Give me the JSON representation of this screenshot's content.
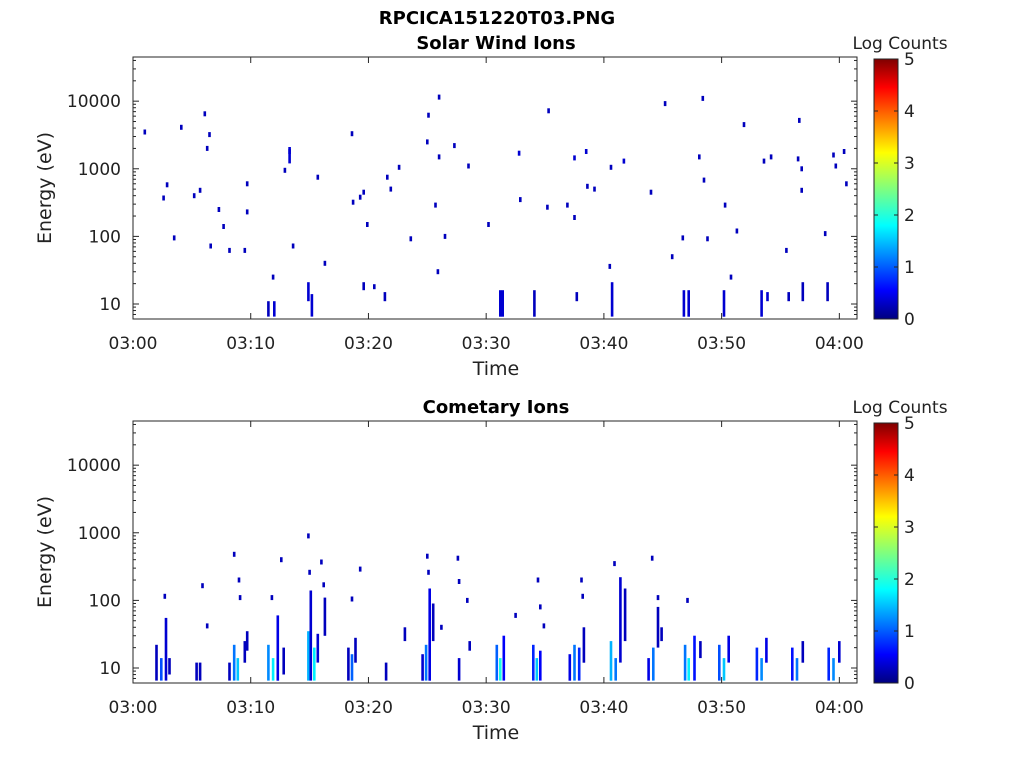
{
  "figure": {
    "main_title": "RPCICA151220T03.PNG"
  },
  "chart_data": [
    {
      "type": "heatmap",
      "title": "Solar Wind Ions",
      "xlabel": "Time",
      "ylabel": "Energy (eV)",
      "x_ticks": [
        "03:00",
        "03:10",
        "03:20",
        "03:30",
        "03:40",
        "03:50",
        "04:00"
      ],
      "y_scale": "log",
      "y_ticks": [
        "10",
        "100",
        "1000",
        "10000"
      ],
      "ylim": [
        6,
        45000
      ],
      "colorbar": {
        "label": "Log Counts",
        "ticks": [
          "0",
          "1",
          "2",
          "3",
          "4",
          "5"
        ],
        "range": [
          0,
          5
        ],
        "colormap": "jet"
      },
      "cells": [
        {
          "t": 1.0,
          "e": 3500,
          "v": 0.3
        },
        {
          "t": 2.6,
          "e": 370,
          "v": 0.3
        },
        {
          "t": 2.9,
          "e": 580,
          "v": 0.3
        },
        {
          "t": 3.5,
          "e": 95,
          "v": 0.3
        },
        {
          "t": 4.1,
          "e": 4100,
          "v": 0.3
        },
        {
          "t": 5.2,
          "e": 400,
          "v": 0.3
        },
        {
          "t": 5.7,
          "e": 480,
          "v": 0.3
        },
        {
          "t": 6.1,
          "e": 6500,
          "v": 0.3
        },
        {
          "t": 6.3,
          "e": 2000,
          "v": 0.3
        },
        {
          "t": 6.5,
          "e": 3200,
          "v": 0.3
        },
        {
          "t": 6.6,
          "e": 72,
          "v": 0.3
        },
        {
          "t": 7.3,
          "e": 250,
          "v": 0.3
        },
        {
          "t": 7.7,
          "e": 140,
          "v": 0.3
        },
        {
          "t": 8.2,
          "e": 62,
          "v": 0.3
        },
        {
          "t": 9.5,
          "e": 62,
          "v": 0.3
        },
        {
          "t": 9.7,
          "e": 600,
          "v": 0.3
        },
        {
          "t": 9.7,
          "e": 230,
          "v": 0.3
        },
        {
          "t": 11.9,
          "e": 25,
          "v": 0.3
        },
        {
          "t": 12.9,
          "e": 950,
          "v": 0.3
        },
        {
          "t": 13.3,
          "e": 1800,
          "v": 0.4
        },
        {
          "t": 13.6,
          "e": 72,
          "v": 0.3
        },
        {
          "t": 15.7,
          "e": 750,
          "v": 0.3
        },
        {
          "t": 16.3,
          "e": 40,
          "v": 0.3
        },
        {
          "t": 18.6,
          "e": 3300,
          "v": 0.3
        },
        {
          "t": 18.7,
          "e": 320,
          "v": 0.3
        },
        {
          "t": 19.3,
          "e": 380,
          "v": 0.3
        },
        {
          "t": 19.6,
          "e": 450,
          "v": 0.3
        },
        {
          "t": 19.9,
          "e": 150,
          "v": 0.3
        },
        {
          "t": 20.5,
          "e": 18,
          "v": 0.3
        },
        {
          "t": 21.6,
          "e": 750,
          "v": 0.3
        },
        {
          "t": 21.9,
          "e": 500,
          "v": 0.3
        },
        {
          "t": 22.6,
          "e": 1050,
          "v": 0.3
        },
        {
          "t": 23.6,
          "e": 92,
          "v": 0.3
        },
        {
          "t": 25.0,
          "e": 2500,
          "v": 0.3
        },
        {
          "t": 25.1,
          "e": 6200,
          "v": 0.3
        },
        {
          "t": 25.7,
          "e": 290,
          "v": 0.3
        },
        {
          "t": 25.9,
          "e": 30,
          "v": 0.3
        },
        {
          "t": 26.0,
          "e": 11500,
          "v": 0.3
        },
        {
          "t": 26.0,
          "e": 1500,
          "v": 0.3
        },
        {
          "t": 26.5,
          "e": 100,
          "v": 0.3
        },
        {
          "t": 27.3,
          "e": 2200,
          "v": 0.3
        },
        {
          "t": 28.5,
          "e": 1100,
          "v": 0.3
        },
        {
          "t": 30.2,
          "e": 150,
          "v": 0.3
        },
        {
          "t": 32.8,
          "e": 1700,
          "v": 0.4
        },
        {
          "t": 32.9,
          "e": 350,
          "v": 0.3
        },
        {
          "t": 35.2,
          "e": 270,
          "v": 0.3
        },
        {
          "t": 35.3,
          "e": 7200,
          "v": 0.3
        },
        {
          "t": 36.9,
          "e": 290,
          "v": 0.3
        },
        {
          "t": 37.5,
          "e": 190,
          "v": 0.3
        },
        {
          "t": 37.5,
          "e": 1450,
          "v": 0.4
        },
        {
          "t": 38.5,
          "e": 1800,
          "v": 0.4
        },
        {
          "t": 38.6,
          "e": 550,
          "v": 0.3
        },
        {
          "t": 39.2,
          "e": 500,
          "v": 0.3
        },
        {
          "t": 40.5,
          "e": 36,
          "v": 0.3
        },
        {
          "t": 40.6,
          "e": 1050,
          "v": 0.3
        },
        {
          "t": 41.7,
          "e": 1300,
          "v": 0.4
        },
        {
          "t": 44.0,
          "e": 450,
          "v": 0.3
        },
        {
          "t": 45.2,
          "e": 9200,
          "v": 0.3
        },
        {
          "t": 45.8,
          "e": 50,
          "v": 0.3
        },
        {
          "t": 46.7,
          "e": 95,
          "v": 0.3
        },
        {
          "t": 48.1,
          "e": 1500,
          "v": 0.3
        },
        {
          "t": 48.4,
          "e": 11000,
          "v": 0.3
        },
        {
          "t": 48.5,
          "e": 680,
          "v": 0.3
        },
        {
          "t": 48.8,
          "e": 92,
          "v": 0.3
        },
        {
          "t": 50.3,
          "e": 290,
          "v": 0.3
        },
        {
          "t": 50.8,
          "e": 25,
          "v": 0.3
        },
        {
          "t": 51.3,
          "e": 120,
          "v": 0.3
        },
        {
          "t": 51.9,
          "e": 4500,
          "v": 0.3
        },
        {
          "t": 53.6,
          "e": 1300,
          "v": 0.3
        },
        {
          "t": 54.2,
          "e": 1500,
          "v": 0.3
        },
        {
          "t": 55.5,
          "e": 62,
          "v": 0.3
        },
        {
          "t": 56.5,
          "e": 1400,
          "v": 0.3
        },
        {
          "t": 56.6,
          "e": 5200,
          "v": 0.3
        },
        {
          "t": 56.8,
          "e": 1000,
          "v": 0.3
        },
        {
          "t": 56.8,
          "e": 480,
          "v": 0.3
        },
        {
          "t": 58.8,
          "e": 110,
          "v": 0.3
        },
        {
          "t": 59.5,
          "e": 1600,
          "v": 0.3
        },
        {
          "t": 59.7,
          "e": 1100,
          "v": 0.3
        },
        {
          "t": 60.4,
          "e": 1800,
          "v": 0.3
        },
        {
          "t": 60.6,
          "e": 600,
          "v": 0.3
        }
      ],
      "columns": [
        {
          "t": 11.5,
          "e0": 6.5,
          "e1": 11,
          "v": 0.3
        },
        {
          "t": 12.0,
          "e0": 6.5,
          "e1": 11,
          "v": 0.4
        },
        {
          "t": 13.3,
          "e0": 1200,
          "e1": 2100,
          "v": 0.4
        },
        {
          "t": 14.9,
          "e0": 11,
          "e1": 21,
          "v": 0.4
        },
        {
          "t": 15.2,
          "e0": 6.5,
          "e1": 14,
          "v": 0.4
        },
        {
          "t": 19.6,
          "e0": 16,
          "e1": 21,
          "v": 0.3
        },
        {
          "t": 21.4,
          "e0": 11,
          "e1": 15,
          "v": 0.3
        },
        {
          "t": 31.2,
          "e0": 6.5,
          "e1": 16,
          "v": 0.4
        },
        {
          "t": 31.4,
          "e0": 6.5,
          "e1": 16,
          "v": 0.4
        },
        {
          "t": 34.1,
          "e0": 6.5,
          "e1": 16,
          "v": 0.3
        },
        {
          "t": 37.7,
          "e0": 11,
          "e1": 15,
          "v": 0.3
        },
        {
          "t": 40.7,
          "e0": 6.5,
          "e1": 21,
          "v": 0.4
        },
        {
          "t": 46.8,
          "e0": 6.5,
          "e1": 16,
          "v": 0.4
        },
        {
          "t": 47.2,
          "e0": 6.5,
          "e1": 16,
          "v": 0.4
        },
        {
          "t": 50.2,
          "e0": 6.5,
          "e1": 16,
          "v": 0.4
        },
        {
          "t": 53.4,
          "e0": 6.5,
          "e1": 16,
          "v": 0.4
        },
        {
          "t": 53.9,
          "e0": 11,
          "e1": 15,
          "v": 0.4
        },
        {
          "t": 55.7,
          "e0": 11,
          "e1": 15,
          "v": 0.3
        },
        {
          "t": 56.9,
          "e0": 11,
          "e1": 21,
          "v": 0.3
        },
        {
          "t": 59.0,
          "e0": 11,
          "e1": 21,
          "v": 0.3
        }
      ]
    },
    {
      "type": "heatmap",
      "title": "Cometary Ions",
      "xlabel": "Time",
      "ylabel": "Energy (eV)",
      "x_ticks": [
        "03:00",
        "03:10",
        "03:20",
        "03:30",
        "03:40",
        "03:50",
        "04:00"
      ],
      "y_scale": "log",
      "y_ticks": [
        "10",
        "100",
        "1000",
        "10000"
      ],
      "ylim": [
        6,
        45000
      ],
      "colorbar": {
        "label": "Log Counts",
        "ticks": [
          "0",
          "1",
          "2",
          "3",
          "4",
          "5"
        ],
        "range": [
          0,
          5
        ],
        "colormap": "jet"
      },
      "cells": [
        {
          "t": 2.7,
          "e": 115,
          "v": 0.3
        },
        {
          "t": 5.9,
          "e": 165,
          "v": 0.3
        },
        {
          "t": 6.3,
          "e": 42,
          "v": 0.3
        },
        {
          "t": 8.6,
          "e": 480,
          "v": 0.3
        },
        {
          "t": 9.0,
          "e": 200,
          "v": 0.3
        },
        {
          "t": 9.1,
          "e": 110,
          "v": 0.3
        },
        {
          "t": 11.8,
          "e": 110,
          "v": 0.3
        },
        {
          "t": 12.6,
          "e": 400,
          "v": 0.3
        },
        {
          "t": 14.9,
          "e": 900,
          "v": 0.3
        },
        {
          "t": 15.0,
          "e": 260,
          "v": 0.3
        },
        {
          "t": 16.0,
          "e": 370,
          "v": 0.3
        },
        {
          "t": 16.2,
          "e": 170,
          "v": 0.3
        },
        {
          "t": 18.6,
          "e": 105,
          "v": 0.3
        },
        {
          "t": 19.3,
          "e": 290,
          "v": 0.3
        },
        {
          "t": 25.0,
          "e": 450,
          "v": 0.3
        },
        {
          "t": 25.1,
          "e": 260,
          "v": 0.3
        },
        {
          "t": 26.2,
          "e": 40,
          "v": 0.3
        },
        {
          "t": 27.6,
          "e": 420,
          "v": 0.3
        },
        {
          "t": 27.7,
          "e": 190,
          "v": 0.3
        },
        {
          "t": 28.4,
          "e": 100,
          "v": 0.3
        },
        {
          "t": 32.5,
          "e": 60,
          "v": 0.3
        },
        {
          "t": 34.4,
          "e": 200,
          "v": 0.3
        },
        {
          "t": 34.6,
          "e": 80,
          "v": 0.3
        },
        {
          "t": 34.9,
          "e": 42,
          "v": 0.3
        },
        {
          "t": 38.1,
          "e": 200,
          "v": 0.3
        },
        {
          "t": 38.2,
          "e": 115,
          "v": 0.3
        },
        {
          "t": 40.9,
          "e": 350,
          "v": 0.3
        },
        {
          "t": 44.1,
          "e": 420,
          "v": 0.3
        },
        {
          "t": 44.6,
          "e": 110,
          "v": 0.3
        },
        {
          "t": 47.1,
          "e": 100,
          "v": 0.3
        }
      ],
      "columns": [
        {
          "t": 2.0,
          "e0": 6.5,
          "e1": 22,
          "v": 0.3
        },
        {
          "t": 2.4,
          "e0": 6.5,
          "e1": 14,
          "v": 1.0
        },
        {
          "t": 2.8,
          "e0": 6.5,
          "e1": 55,
          "v": 0.4
        },
        {
          "t": 3.1,
          "e0": 8,
          "e1": 14,
          "v": 0.3
        },
        {
          "t": 5.4,
          "e0": 6.5,
          "e1": 12,
          "v": 0.3
        },
        {
          "t": 5.7,
          "e0": 6.5,
          "e1": 12,
          "v": 0.3
        },
        {
          "t": 8.2,
          "e0": 6.5,
          "e1": 12,
          "v": 0.3
        },
        {
          "t": 8.6,
          "e0": 6.5,
          "e1": 22,
          "v": 1.2
        },
        {
          "t": 8.9,
          "e0": 6.5,
          "e1": 14,
          "v": 1.6
        },
        {
          "t": 9.5,
          "e0": 12,
          "e1": 25,
          "v": 0.3
        },
        {
          "t": 9.7,
          "e0": 18,
          "e1": 35,
          "v": 0.3
        },
        {
          "t": 11.5,
          "e0": 6.5,
          "e1": 22,
          "v": 1.3
        },
        {
          "t": 11.9,
          "e0": 6.5,
          "e1": 14,
          "v": 1.8
        },
        {
          "t": 12.3,
          "e0": 6.5,
          "e1": 60,
          "v": 0.5
        },
        {
          "t": 12.8,
          "e0": 8,
          "e1": 20,
          "v": 0.3
        },
        {
          "t": 14.9,
          "e0": 6.5,
          "e1": 35,
          "v": 1.5
        },
        {
          "t": 15.1,
          "e0": 6.5,
          "e1": 140,
          "v": 0.4
        },
        {
          "t": 15.4,
          "e0": 6.5,
          "e1": 20,
          "v": 1.8
        },
        {
          "t": 15.7,
          "e0": 12,
          "e1": 32,
          "v": 0.4
        },
        {
          "t": 16.3,
          "e0": 30,
          "e1": 110,
          "v": 0.3
        },
        {
          "t": 18.3,
          "e0": 6.5,
          "e1": 20,
          "v": 0.3
        },
        {
          "t": 18.6,
          "e0": 6.5,
          "e1": 16,
          "v": 1.1
        },
        {
          "t": 18.9,
          "e0": 12,
          "e1": 28,
          "v": 0.3
        },
        {
          "t": 21.5,
          "e0": 6.5,
          "e1": 12,
          "v": 0.3
        },
        {
          "t": 23.1,
          "e0": 25,
          "e1": 40,
          "v": 0.3
        },
        {
          "t": 24.6,
          "e0": 6.5,
          "e1": 16,
          "v": 0.4
        },
        {
          "t": 24.9,
          "e0": 6.5,
          "e1": 22,
          "v": 1.2
        },
        {
          "t": 25.2,
          "e0": 6.5,
          "e1": 150,
          "v": 0.5
        },
        {
          "t": 25.5,
          "e0": 25,
          "e1": 90,
          "v": 0.3
        },
        {
          "t": 27.7,
          "e0": 6.5,
          "e1": 14,
          "v": 0.4
        },
        {
          "t": 28.6,
          "e0": 18,
          "e1": 25,
          "v": 0.3
        },
        {
          "t": 30.9,
          "e0": 6.5,
          "e1": 22,
          "v": 1.1
        },
        {
          "t": 31.2,
          "e0": 6.5,
          "e1": 14,
          "v": 2.0
        },
        {
          "t": 31.5,
          "e0": 6.5,
          "e1": 30,
          "v": 0.6
        },
        {
          "t": 34.0,
          "e0": 6.5,
          "e1": 22,
          "v": 0.8
        },
        {
          "t": 34.3,
          "e0": 6.5,
          "e1": 14,
          "v": 1.6
        },
        {
          "t": 34.6,
          "e0": 6.5,
          "e1": 18,
          "v": 0.6
        },
        {
          "t": 37.1,
          "e0": 6.5,
          "e1": 16,
          "v": 0.5
        },
        {
          "t": 37.5,
          "e0": 6.5,
          "e1": 22,
          "v": 1.2
        },
        {
          "t": 37.9,
          "e0": 6.5,
          "e1": 20,
          "v": 0.8
        },
        {
          "t": 38.3,
          "e0": 12,
          "e1": 40,
          "v": 0.3
        },
        {
          "t": 40.6,
          "e0": 6.5,
          "e1": 25,
          "v": 1.5
        },
        {
          "t": 41.0,
          "e0": 6.5,
          "e1": 14,
          "v": 1.2
        },
        {
          "t": 41.4,
          "e0": 12,
          "e1": 220,
          "v": 0.4
        },
        {
          "t": 41.8,
          "e0": 25,
          "e1": 150,
          "v": 0.3
        },
        {
          "t": 43.8,
          "e0": 6.5,
          "e1": 14,
          "v": 0.5
        },
        {
          "t": 44.2,
          "e0": 6.5,
          "e1": 20,
          "v": 1.2
        },
        {
          "t": 44.6,
          "e0": 20,
          "e1": 80,
          "v": 0.3
        },
        {
          "t": 44.9,
          "e0": 25,
          "e1": 40,
          "v": 0.3
        },
        {
          "t": 46.9,
          "e0": 6.5,
          "e1": 22,
          "v": 1.2
        },
        {
          "t": 47.2,
          "e0": 6.5,
          "e1": 14,
          "v": 1.8
        },
        {
          "t": 47.7,
          "e0": 6.5,
          "e1": 30,
          "v": 0.7
        },
        {
          "t": 48.2,
          "e0": 14,
          "e1": 25,
          "v": 0.3
        },
        {
          "t": 49.8,
          "e0": 6.5,
          "e1": 22,
          "v": 1.0
        },
        {
          "t": 50.2,
          "e0": 6.5,
          "e1": 14,
          "v": 1.6
        },
        {
          "t": 50.6,
          "e0": 12,
          "e1": 30,
          "v": 0.5
        },
        {
          "t": 53.0,
          "e0": 6.5,
          "e1": 20,
          "v": 0.8
        },
        {
          "t": 53.4,
          "e0": 6.5,
          "e1": 14,
          "v": 1.3
        },
        {
          "t": 53.8,
          "e0": 12,
          "e1": 28,
          "v": 0.5
        },
        {
          "t": 56.0,
          "e0": 6.5,
          "e1": 20,
          "v": 0.7
        },
        {
          "t": 56.4,
          "e0": 6.5,
          "e1": 14,
          "v": 1.2
        },
        {
          "t": 56.9,
          "e0": 12,
          "e1": 25,
          "v": 0.3
        },
        {
          "t": 59.1,
          "e0": 6.5,
          "e1": 20,
          "v": 0.8
        },
        {
          "t": 59.5,
          "e0": 6.5,
          "e1": 14,
          "v": 1.3
        },
        {
          "t": 60.0,
          "e0": 12,
          "e1": 25,
          "v": 0.4
        }
      ]
    }
  ]
}
